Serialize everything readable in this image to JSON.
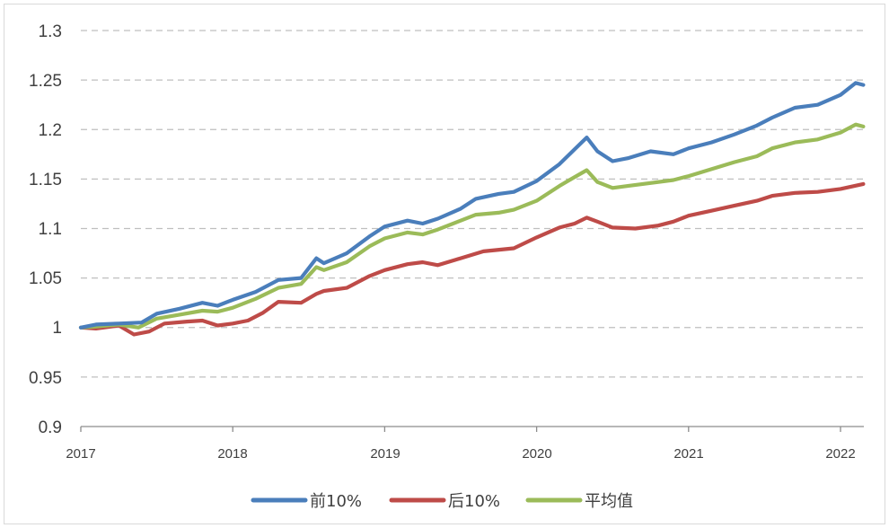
{
  "chart_data": {
    "type": "line",
    "title": "",
    "xlabel": "",
    "ylabel": "",
    "xlim": [
      2017,
      2022.15
    ],
    "ylim": [
      0.9,
      1.3
    ],
    "grid": true,
    "legend_position": "bottom",
    "x_ticks": [
      "2017",
      "2018",
      "2019",
      "2020",
      "2021",
      "2022"
    ],
    "y_ticks": [
      "0.9",
      "0.95",
      "1",
      "1.05",
      "1.1",
      "1.15",
      "1.2",
      "1.25",
      "1.3"
    ],
    "series": [
      {
        "name": "前10%",
        "color": "#4a7ebb",
        "x": [
          2017.0,
          2017.1,
          2017.25,
          2017.4,
          2017.5,
          2017.65,
          2017.8,
          2017.9,
          2018.0,
          2018.15,
          2018.3,
          2018.45,
          2018.55,
          2018.6,
          2018.75,
          2018.9,
          2019.0,
          2019.15,
          2019.25,
          2019.35,
          2019.5,
          2019.6,
          2019.75,
          2019.85,
          2020.0,
          2020.15,
          2020.25,
          2020.33,
          2020.4,
          2020.5,
          2020.6,
          2020.75,
          2020.9,
          2021.0,
          2021.15,
          2021.3,
          2021.45,
          2021.55,
          2021.7,
          2021.85,
          2022.0,
          2022.1,
          2022.15
        ],
        "values": [
          1.0,
          1.003,
          1.004,
          1.005,
          1.014,
          1.019,
          1.025,
          1.022,
          1.028,
          1.036,
          1.048,
          1.05,
          1.07,
          1.065,
          1.075,
          1.092,
          1.102,
          1.108,
          1.105,
          1.11,
          1.12,
          1.13,
          1.135,
          1.137,
          1.148,
          1.165,
          1.18,
          1.192,
          1.178,
          1.168,
          1.171,
          1.178,
          1.175,
          1.181,
          1.187,
          1.195,
          1.204,
          1.212,
          1.222,
          1.225,
          1.235,
          1.247,
          1.245
        ]
      },
      {
        "name": "后10%",
        "color": "#be4b48",
        "x": [
          2017.0,
          2017.1,
          2017.25,
          2017.35,
          2017.45,
          2017.55,
          2017.7,
          2017.8,
          2017.9,
          2018.0,
          2018.1,
          2018.2,
          2018.3,
          2018.45,
          2018.55,
          2018.6,
          2018.75,
          2018.9,
          2019.0,
          2019.15,
          2019.25,
          2019.35,
          2019.5,
          2019.65,
          2019.85,
          2020.0,
          2020.15,
          2020.25,
          2020.33,
          2020.4,
          2020.5,
          2020.65,
          2020.8,
          2020.9,
          2021.0,
          2021.15,
          2021.3,
          2021.45,
          2021.55,
          2021.7,
          2021.85,
          2022.0,
          2022.15
        ],
        "values": [
          1.0,
          0.999,
          1.002,
          0.993,
          0.996,
          1.004,
          1.006,
          1.007,
          1.002,
          1.004,
          1.007,
          1.015,
          1.026,
          1.025,
          1.034,
          1.037,
          1.04,
          1.052,
          1.058,
          1.064,
          1.066,
          1.063,
          1.07,
          1.077,
          1.08,
          1.091,
          1.101,
          1.105,
          1.111,
          1.107,
          1.101,
          1.1,
          1.103,
          1.107,
          1.113,
          1.118,
          1.123,
          1.128,
          1.133,
          1.136,
          1.137,
          1.14,
          1.145
        ]
      },
      {
        "name": "平均值",
        "color": "#9bbb59",
        "x": [
          2017.0,
          2017.1,
          2017.25,
          2017.38,
          2017.5,
          2017.65,
          2017.8,
          2017.9,
          2018.0,
          2018.15,
          2018.3,
          2018.45,
          2018.55,
          2018.6,
          2018.75,
          2018.9,
          2019.0,
          2019.15,
          2019.25,
          2019.35,
          2019.5,
          2019.6,
          2019.75,
          2019.85,
          2020.0,
          2020.15,
          2020.25,
          2020.33,
          2020.4,
          2020.5,
          2020.6,
          2020.75,
          2020.9,
          2021.0,
          2021.15,
          2021.3,
          2021.45,
          2021.55,
          2021.7,
          2021.85,
          2022.0,
          2022.1,
          2022.15
        ],
        "values": [
          1.0,
          1.001,
          1.003,
          1.0,
          1.009,
          1.013,
          1.017,
          1.016,
          1.02,
          1.029,
          1.04,
          1.044,
          1.061,
          1.058,
          1.066,
          1.082,
          1.09,
          1.096,
          1.094,
          1.099,
          1.108,
          1.114,
          1.116,
          1.119,
          1.128,
          1.143,
          1.152,
          1.159,
          1.147,
          1.141,
          1.143,
          1.146,
          1.149,
          1.153,
          1.16,
          1.167,
          1.173,
          1.181,
          1.187,
          1.19,
          1.197,
          1.205,
          1.203
        ]
      }
    ]
  }
}
